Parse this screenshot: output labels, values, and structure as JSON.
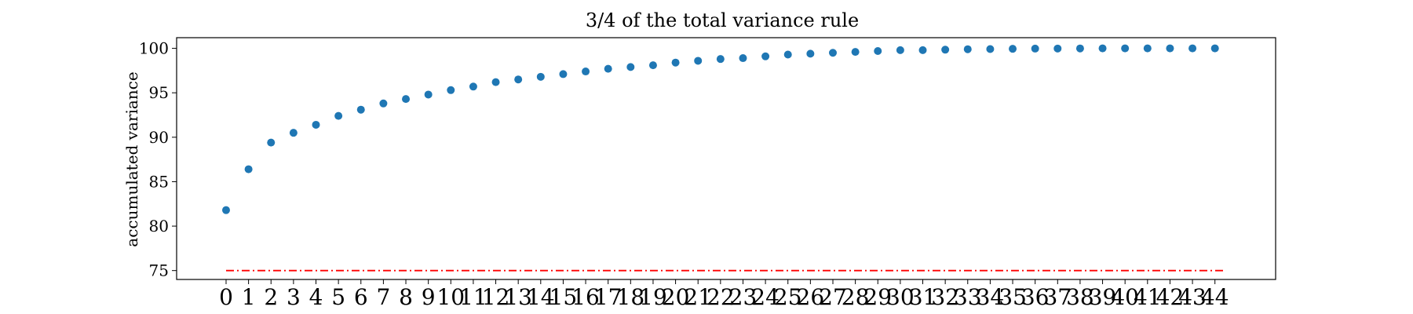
{
  "chart_data": {
    "type": "scatter",
    "title": "3/4 of the total variance rule",
    "xlabel": "",
    "ylabel": "accumulated variance",
    "xlim": [
      -2.2,
      46.7
    ],
    "ylim": [
      74,
      101.2
    ],
    "xticks": [
      0,
      1,
      2,
      3,
      4,
      5,
      6,
      7,
      8,
      9,
      10,
      11,
      12,
      13,
      14,
      15,
      16,
      17,
      18,
      19,
      20,
      21,
      22,
      23,
      24,
      25,
      26,
      27,
      28,
      29,
      30,
      31,
      32,
      33,
      34,
      35,
      36,
      37,
      38,
      39,
      40,
      41,
      42,
      43,
      44
    ],
    "yticks": [
      75,
      80,
      85,
      90,
      95,
      100
    ],
    "grid": false,
    "series": [
      {
        "type": "scatter",
        "color": "#1f77b4",
        "x": [
          0,
          1,
          2,
          3,
          4,
          5,
          6,
          7,
          8,
          9,
          10,
          11,
          12,
          13,
          14,
          15,
          16,
          17,
          18,
          19,
          20,
          21,
          22,
          23,
          24,
          25,
          26,
          27,
          28,
          29,
          30,
          31,
          32,
          33,
          34,
          35,
          36,
          37,
          38,
          39,
          40,
          41,
          42,
          43,
          44
        ],
        "y": [
          81.8,
          86.4,
          89.4,
          90.5,
          91.4,
          92.4,
          93.1,
          93.8,
          94.3,
          94.8,
          95.3,
          95.7,
          96.2,
          96.5,
          96.8,
          97.1,
          97.4,
          97.7,
          97.9,
          98.1,
          98.4,
          98.6,
          98.8,
          98.9,
          99.1,
          99.3,
          99.4,
          99.5,
          99.6,
          99.7,
          99.8,
          99.8,
          99.85,
          99.9,
          99.92,
          99.95,
          99.97,
          99.98,
          99.99,
          100,
          100,
          100,
          100,
          100,
          100
        ]
      }
    ],
    "threshold_line": {
      "y": 75,
      "x_start": 0,
      "x_end": 44.5,
      "color": "#ff0000",
      "style": "dash-dot"
    }
  }
}
